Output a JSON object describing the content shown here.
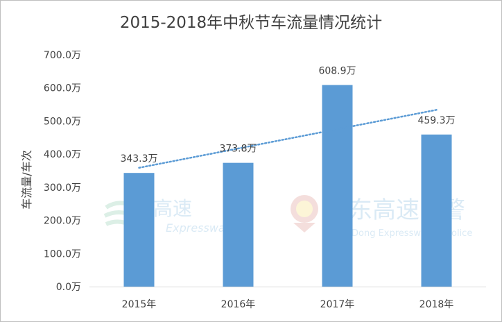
{
  "chart_data": {
    "type": "bar",
    "title": "2015-2018年中秋节车流量情况统计",
    "xlabel": "",
    "ylabel": "车流量/车次",
    "categories": [
      "2015年",
      "2016年",
      "2017年",
      "2018年"
    ],
    "values": [
      343.3,
      373.8,
      608.9,
      459.3
    ],
    "data_labels": [
      "343.3万",
      "373.8万",
      "608.9万",
      "459.3万"
    ],
    "ylim": [
      0,
      700
    ],
    "yticks": [
      0,
      100,
      200,
      300,
      400,
      500,
      600,
      700
    ],
    "ytick_labels": [
      "0.0万",
      "100.0万",
      "200.0万",
      "300.0万",
      "400.0万",
      "500.0万",
      "600.0万",
      "700.0万"
    ],
    "trendline": {
      "type": "linear",
      "style": "dotted"
    },
    "grid": false,
    "legend": "none",
    "colors": {
      "bar": "#5b9bd5",
      "trendline": "#5b9bd5",
      "axis": "#d9d9d9",
      "text": "#404040"
    }
  },
  "watermarks": {
    "left": {
      "text": "高速",
      "subtext": "Expressway"
    },
    "right": {
      "text": "东高速",
      "subtext": "Dong Expressway T",
      "suffix_text": "警",
      "suffix_sub": "olice"
    }
  }
}
